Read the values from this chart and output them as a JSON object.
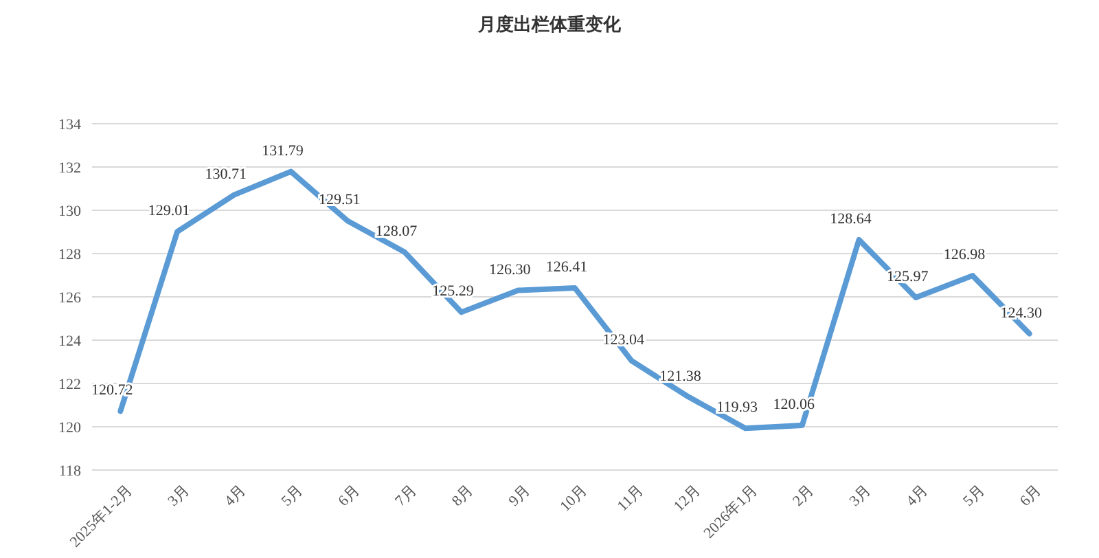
{
  "chart_data": {
    "type": "line",
    "title": "月度出栏体重变化",
    "categories": [
      "2025年1-2月",
      "3月",
      "4月",
      "5月",
      "6月",
      "7月",
      "8月",
      "9月",
      "10月",
      "11月",
      "12月",
      "2026年1月",
      "2月",
      "3月",
      "4月",
      "5月",
      "6月"
    ],
    "series": [
      {
        "color": "#5b9bd5",
        "values": [
          120.72,
          129.01,
          130.71,
          131.79,
          129.51,
          128.07,
          125.29,
          126.3,
          126.41,
          123.04,
          121.38,
          119.93,
          120.06,
          128.64,
          125.97,
          126.98,
          124.3
        ],
        "value_labels": [
          "120.72",
          "129.01",
          "130.71",
          "131.79",
          "129.51",
          "128.07",
          "125.29",
          "126.30",
          "126.41",
          "123.04",
          "121.38",
          "119.93",
          "120.06",
          "128.64",
          "125.97",
          "126.98",
          "124.30"
        ]
      }
    ],
    "ylim": [
      118,
      134
    ],
    "yticks": [
      118,
      120,
      122,
      124,
      126,
      128,
      130,
      132,
      134
    ],
    "grid": "y",
    "marker": "none",
    "line_style": "solid"
  }
}
